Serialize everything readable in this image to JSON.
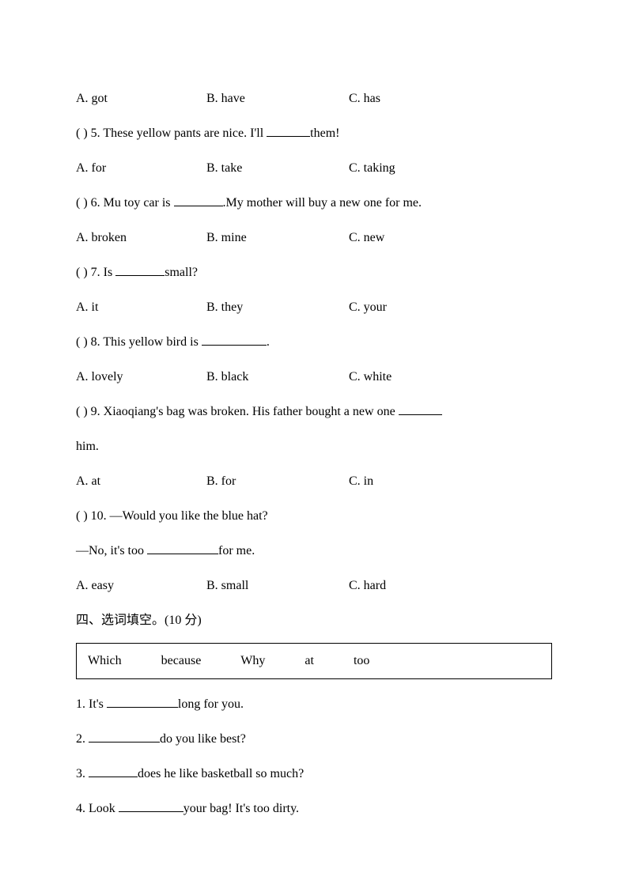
{
  "q4_choices": {
    "a": "A. got",
    "b": "B. have",
    "c": "C. has"
  },
  "q5": {
    "stem_prefix": "(      ) 5. These yellow pants are nice. I'll ",
    "stem_suffix": "them!",
    "a": "A. for",
    "b": "B. take",
    "c": "C. taking"
  },
  "q6": {
    "stem_prefix": "(      ) 6. Mu toy car is ",
    "stem_suffix": ".My mother will buy a new one for me.",
    "a": "A. broken",
    "b": "B. mine",
    "c": "C. new"
  },
  "q7": {
    "stem_prefix": "(      ) 7. Is ",
    "stem_suffix": "small?",
    "a": "A. it",
    "b": "B. they",
    "c": "C. your"
  },
  "q8": {
    "stem_prefix": "(      ) 8. This yellow bird is ",
    "stem_suffix": ".",
    "a": "A. lovely",
    "b": "B. black",
    "c": "C. white"
  },
  "q9": {
    "stem_prefix": "(      ) 9. Xiaoqiang's bag was broken. His father bought a new one ",
    "line2": "him.",
    "a": "A. at",
    "b": "B. for",
    "c": "C. in"
  },
  "q10": {
    "stem": "(      ) 10. —Would you like the blue hat?",
    "line2_prefix": "—No, it's too ",
    "line2_suffix": "for me.",
    "a": "A. easy",
    "b": "B. small",
    "c": "C. hard"
  },
  "section4": {
    "title": "四、选词填空。(10 分)",
    "words": [
      "Which",
      "because",
      "Why",
      "at",
      "too"
    ]
  },
  "fill": {
    "f1_prefix": "1. It's ",
    "f1_suffix": "long for you.",
    "f2_prefix": "2. ",
    "f2_suffix": "do you like best?",
    "f3_prefix": "3. ",
    "f3_suffix": "does he like basketball so much?",
    "f4_prefix": "4. Look ",
    "f4_suffix": "your bag! It's too dirty."
  }
}
